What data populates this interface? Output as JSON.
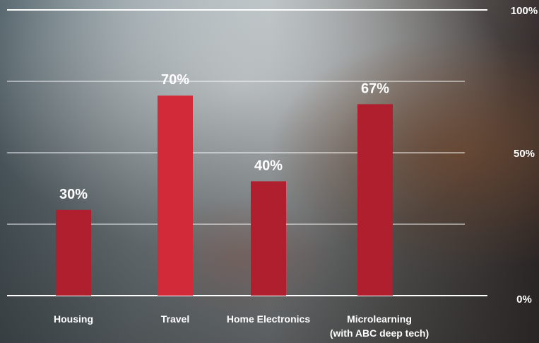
{
  "chart_data": {
    "type": "bar",
    "categories": [
      "Housing",
      "Travel",
      "Home Electronics",
      "Microlearning\n(with ABC deep tech)"
    ],
    "values": [
      30,
      70,
      40,
      67
    ],
    "data_labels": [
      "30%",
      "70%",
      "40%",
      "67%"
    ],
    "ylim": [
      0,
      100
    ],
    "y_tick_values": [
      0,
      50,
      100
    ],
    "y_tick_labels": [
      "0%",
      "50%",
      "100%"
    ],
    "gridlines": [
      0,
      25,
      50,
      75,
      100
    ],
    "grid": true,
    "title": "",
    "xlabel": "",
    "ylabel": "",
    "bar_colors": [
      "#b01f2e",
      "#d32a3a",
      "#b01f2e",
      "#b01f2e"
    ],
    "text_color": "#ffffff"
  }
}
